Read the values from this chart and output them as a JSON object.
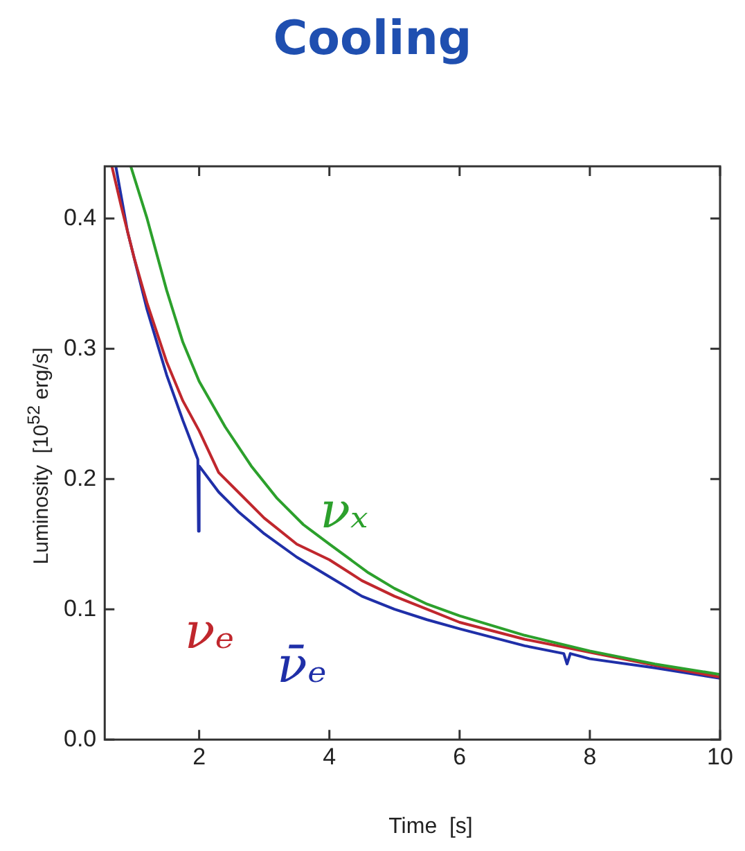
{
  "chart_data": {
    "type": "line",
    "title": "Cooling",
    "xlabel": "Time  [s]",
    "ylabel": "Luminosity  [10$^{52}$ erg/s]",
    "xlim": [
      0.55,
      10
    ],
    "ylim": [
      0,
      0.44
    ],
    "xticks": [
      2,
      4,
      6,
      8,
      10
    ],
    "yticks": [
      {
        "value": 0,
        "label": "0.0"
      },
      0.1,
      0.2,
      0.3,
      0.4
    ],
    "grid": false,
    "legend": false,
    "marker": "none",
    "line_style": "solid",
    "series": [
      {
        "name": "νₓ",
        "color": "#2ca02c",
        "x": [
          0.95,
          1.2,
          1.5,
          1.75,
          2,
          2.4,
          2.8,
          3.2,
          3.6,
          4,
          4.6,
          5,
          5.5,
          6,
          7,
          8,
          9,
          10
        ],
        "values": [
          0.44,
          0.4,
          0.345,
          0.305,
          0.275,
          0.24,
          0.21,
          0.185,
          0.165,
          0.15,
          0.128,
          0.116,
          0.104,
          0.095,
          0.08,
          0.068,
          0.058,
          0.05
        ]
      },
      {
        "name": "νₑ",
        "color": "#c0272d",
        "x": [
          0.66,
          0.8,
          1,
          1.2,
          1.5,
          1.75,
          2,
          2.3,
          2.6,
          3,
          3.5,
          4,
          4.5,
          5,
          5.5,
          6,
          7,
          8,
          9,
          10
        ],
        "values": [
          0.44,
          0.41,
          0.37,
          0.335,
          0.29,
          0.26,
          0.237,
          0.205,
          0.19,
          0.17,
          0.15,
          0.138,
          0.122,
          0.11,
          0.1,
          0.09,
          0.077,
          0.067,
          0.057,
          0.048
        ]
      },
      {
        "name": "ν̄ₑ",
        "color": "#1f2fa8",
        "x": [
          0.72,
          0.9,
          1.2,
          1.5,
          1.75,
          1.98,
          1.99,
          2,
          2.3,
          2.6,
          3,
          3.5,
          4,
          4.5,
          5,
          5.5,
          6,
          7,
          7.6,
          7.65,
          7.7,
          8,
          9,
          10
        ],
        "values": [
          0.44,
          0.39,
          0.33,
          0.28,
          0.245,
          0.215,
          0.16,
          0.21,
          0.19,
          0.175,
          0.158,
          0.14,
          0.125,
          0.11,
          0.1,
          0.092,
          0.085,
          0.072,
          0.066,
          0.058,
          0.066,
          0.062,
          0.055,
          0.047
        ]
      }
    ]
  }
}
